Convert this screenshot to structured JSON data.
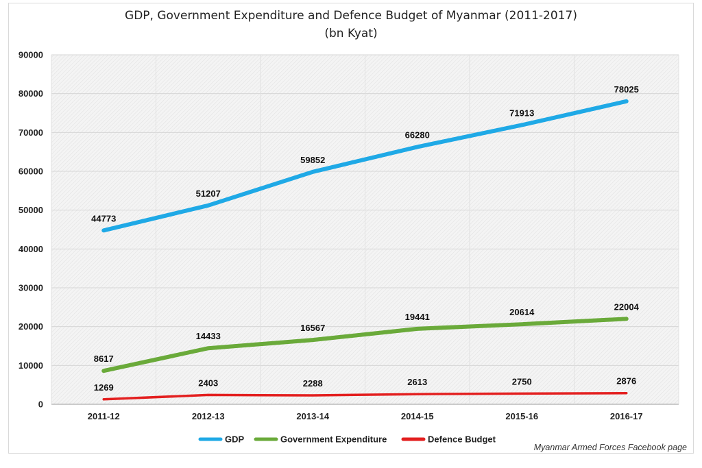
{
  "title_line1": "GDP, Government Expenditure and Defence Budget of Myanmar (2011-2017)",
  "title_line2": "(bn Kyat)",
  "source": "Myanmar Armed Forces Facebook page",
  "chart_data": {
    "type": "line",
    "title": "GDP, Government Expenditure and Defence Budget of Myanmar (2011-2017)",
    "subtitle": "(bn Kyat)",
    "categories": [
      "2011-12",
      "2012-13",
      "2013-14",
      "2014-15",
      "2015-16",
      "2016-17"
    ],
    "ylim": [
      0,
      90000
    ],
    "yticks": [
      0,
      10000,
      20000,
      30000,
      40000,
      50000,
      60000,
      70000,
      80000,
      90000
    ],
    "grid": true,
    "legend_position": "bottom",
    "series": [
      {
        "name": "GDP",
        "color": "#1fa9e6",
        "values": [
          44773,
          51207,
          59852,
          66280,
          71913,
          78025
        ]
      },
      {
        "name": "Government Expenditure",
        "color": "#6aaa3a",
        "values": [
          8617,
          14433,
          16567,
          19441,
          20614,
          22004
        ]
      },
      {
        "name": "Defence Budget",
        "color": "#e31f1f",
        "values": [
          1269,
          2403,
          2288,
          2613,
          2750,
          2876
        ]
      }
    ]
  }
}
